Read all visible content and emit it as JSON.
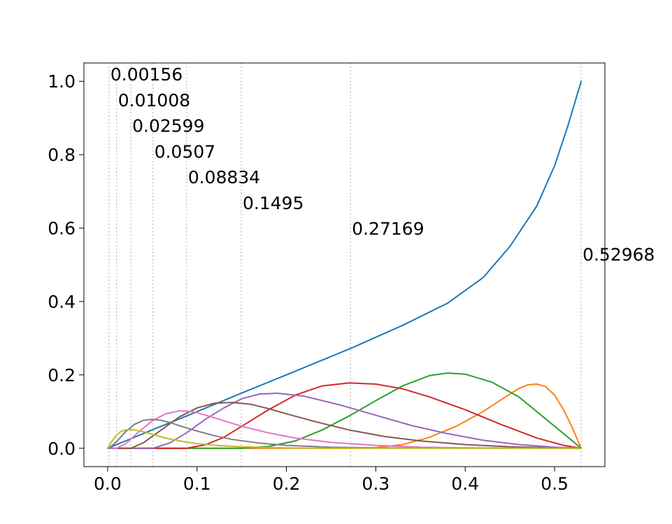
{
  "chart_data": {
    "type": "line",
    "title": "",
    "xlabel": "",
    "ylabel": "",
    "xlim": [
      -0.0265,
      0.5562
    ],
    "ylim": [
      -0.05,
      1.05
    ],
    "xticks": [
      0.0,
      0.1,
      0.2,
      0.3,
      0.4,
      0.5
    ],
    "xtick_labels": [
      "0.0",
      "0.1",
      "0.2",
      "0.3",
      "0.4",
      "0.5"
    ],
    "yticks": [
      0.0,
      0.2,
      0.4,
      0.6,
      0.8,
      1.0
    ],
    "ytick_labels": [
      "0.0",
      "0.2",
      "0.4",
      "0.6",
      "0.8",
      "1.0"
    ],
    "grid": false,
    "legend": null,
    "knots": [
      0.00156,
      0.01008,
      0.02599,
      0.0507,
      0.08834,
      0.1495,
      0.27169,
      0.52968
    ],
    "annotations": [
      {
        "text": "0.00156",
        "x": 0.00156,
        "y": 1.0
      },
      {
        "text": "0.01008",
        "x": 0.01008,
        "y": 0.93
      },
      {
        "text": "0.02599",
        "x": 0.02599,
        "y": 0.86
      },
      {
        "text": "0.0507",
        "x": 0.0507,
        "y": 0.79
      },
      {
        "text": "0.08834",
        "x": 0.08834,
        "y": 0.72
      },
      {
        "text": "0.1495",
        "x": 0.1495,
        "y": 0.65
      },
      {
        "text": "0.27169",
        "x": 0.27169,
        "y": 0.58
      },
      {
        "text": "0.52968",
        "x": 0.52968,
        "y": 0.51
      }
    ],
    "vline_color": "#c8c8c8",
    "series": [
      {
        "color": "#1f77b4",
        "x": [
          0.0,
          0.02599,
          0.0507,
          0.08834,
          0.1495,
          0.2,
          0.27169,
          0.33,
          0.38,
          0.42,
          0.45,
          0.48,
          0.5,
          0.515,
          0.52968
        ],
        "y": [
          0.0,
          0.026,
          0.051,
          0.088,
          0.15,
          0.2,
          0.272,
          0.335,
          0.395,
          0.465,
          0.55,
          0.66,
          0.77,
          0.88,
          1.0
        ]
      },
      {
        "color": "#ff7f0e",
        "x": [
          0.0,
          0.27169,
          0.3,
          0.33,
          0.36,
          0.39,
          0.42,
          0.44,
          0.46,
          0.47,
          0.48,
          0.49,
          0.5,
          0.51,
          0.52,
          0.52968
        ],
        "y": [
          0.0,
          0.0,
          0.002,
          0.01,
          0.03,
          0.06,
          0.1,
          0.132,
          0.163,
          0.173,
          0.175,
          0.168,
          0.145,
          0.105,
          0.055,
          0.0
        ]
      },
      {
        "color": "#2ca02c",
        "x": [
          0.0,
          0.1495,
          0.18,
          0.21,
          0.24,
          0.27169,
          0.3,
          0.33,
          0.36,
          0.38,
          0.4,
          0.43,
          0.46,
          0.49,
          0.51,
          0.52968
        ],
        "y": [
          0.0,
          0.0,
          0.005,
          0.02,
          0.05,
          0.09,
          0.13,
          0.17,
          0.198,
          0.205,
          0.202,
          0.18,
          0.14,
          0.08,
          0.04,
          0.0
        ]
      },
      {
        "color": "#d62728",
        "x": [
          0.0,
          0.08834,
          0.11,
          0.13,
          0.15,
          0.18,
          0.21,
          0.24,
          0.27,
          0.3,
          0.33,
          0.36,
          0.4,
          0.44,
          0.48,
          0.51,
          0.52968
        ],
        "y": [
          0.0,
          0.0,
          0.01,
          0.03,
          0.06,
          0.105,
          0.145,
          0.17,
          0.178,
          0.175,
          0.162,
          0.14,
          0.105,
          0.065,
          0.028,
          0.008,
          0.0
        ]
      },
      {
        "color": "#9467bd",
        "x": [
          0.0,
          0.0507,
          0.07,
          0.09,
          0.11,
          0.13,
          0.15,
          0.17,
          0.19,
          0.22,
          0.26,
          0.3,
          0.34,
          0.38,
          0.42,
          0.46,
          0.5,
          0.52968
        ],
        "y": [
          0.0,
          0.0,
          0.015,
          0.045,
          0.08,
          0.11,
          0.135,
          0.148,
          0.15,
          0.142,
          0.118,
          0.09,
          0.062,
          0.04,
          0.022,
          0.01,
          0.003,
          0.0
        ]
      },
      {
        "color": "#8c564b",
        "x": [
          0.0,
          0.02599,
          0.04,
          0.06,
          0.08,
          0.1,
          0.12,
          0.14,
          0.16,
          0.18,
          0.2,
          0.23,
          0.27,
          0.31,
          0.35,
          0.4,
          0.45,
          0.52968
        ],
        "y": [
          0.0,
          0.0,
          0.015,
          0.05,
          0.085,
          0.11,
          0.123,
          0.125,
          0.12,
          0.108,
          0.094,
          0.074,
          0.05,
          0.032,
          0.02,
          0.01,
          0.004,
          0.0
        ]
      },
      {
        "color": "#e377c2",
        "x": [
          0.0,
          0.01008,
          0.02,
          0.035,
          0.05,
          0.065,
          0.08,
          0.095,
          0.11,
          0.13,
          0.15,
          0.18,
          0.21,
          0.25,
          0.3,
          0.35,
          0.4,
          0.52968
        ],
        "y": [
          0.0,
          0.0,
          0.012,
          0.045,
          0.075,
          0.094,
          0.102,
          0.1,
          0.09,
          0.075,
          0.06,
          0.042,
          0.028,
          0.016,
          0.008,
          0.003,
          0.001,
          0.0
        ]
      },
      {
        "color": "#7f7f7f",
        "x": [
          0.0,
          0.00156,
          0.01,
          0.02,
          0.03,
          0.04,
          0.05,
          0.06,
          0.07,
          0.085,
          0.1,
          0.12,
          0.14,
          0.17,
          0.2,
          0.25,
          0.3,
          0.52968
        ],
        "y": [
          0.0,
          0.0,
          0.018,
          0.045,
          0.065,
          0.076,
          0.079,
          0.076,
          0.07,
          0.058,
          0.047,
          0.034,
          0.024,
          0.014,
          0.008,
          0.003,
          0.001,
          0.0
        ]
      },
      {
        "color": "#bcbd22",
        "x": [
          0.0,
          0.005,
          0.01,
          0.015,
          0.02,
          0.025,
          0.03,
          0.04,
          0.05,
          0.06,
          0.07,
          0.085,
          0.1,
          0.12,
          0.15,
          0.2,
          0.25,
          0.52968
        ],
        "y": [
          0.0,
          0.02,
          0.036,
          0.046,
          0.05,
          0.051,
          0.05,
          0.045,
          0.038,
          0.031,
          0.025,
          0.018,
          0.013,
          0.008,
          0.004,
          0.001,
          0.0,
          0.0
        ]
      }
    ]
  }
}
